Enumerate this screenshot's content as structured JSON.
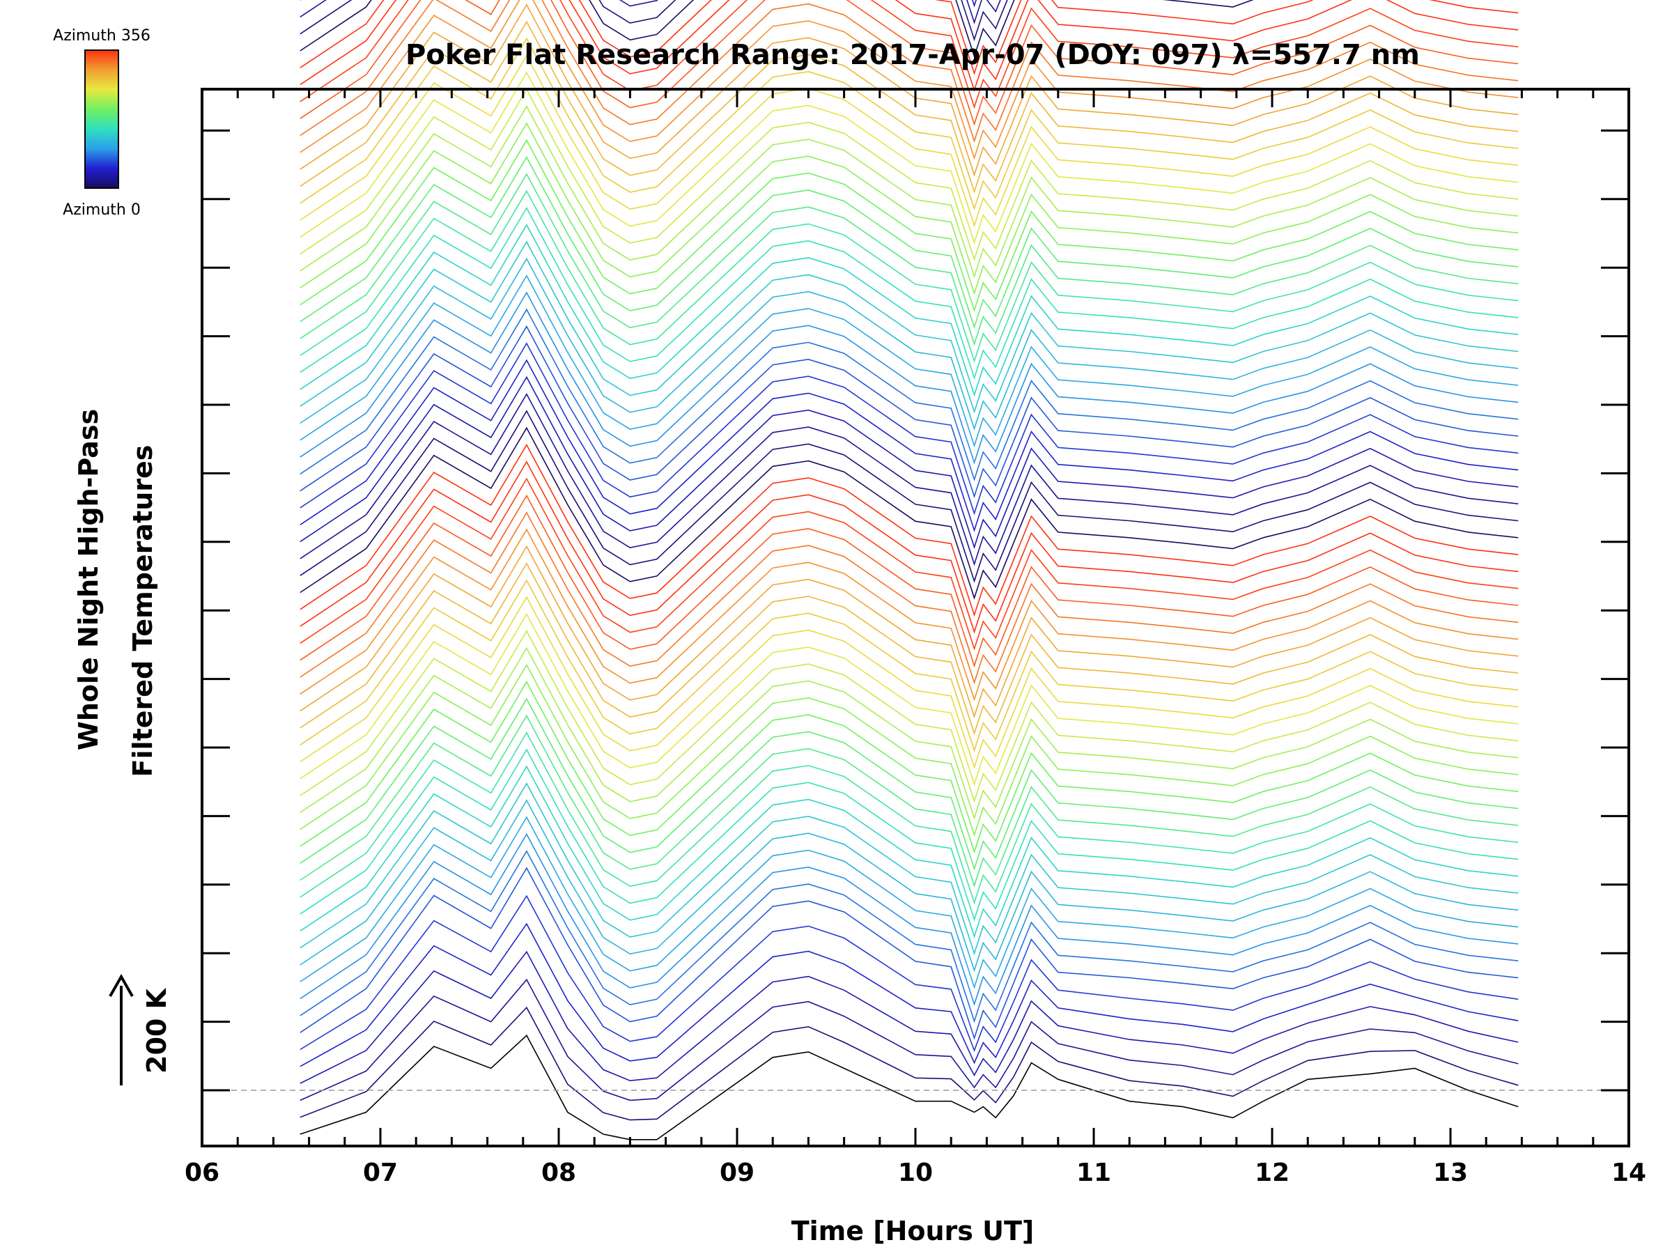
{
  "chart_data": {
    "type": "line",
    "title": "Poker Flat Research Range: 2017-Apr-07 (DOY: 097) λ=557.7 nm",
    "xlabel": "Time [Hours UT]",
    "ylabel_line1": "Whole Night High-Pass",
    "ylabel_line2": "Filtered Temperatures",
    "scale_label": "200 K",
    "xlim": [
      6,
      14
    ],
    "x_ticks": [
      "06",
      "07",
      "08",
      "09",
      "10",
      "11",
      "12",
      "13",
      "14"
    ],
    "y_major_tick_count": 15,
    "baseline_dashed": true,
    "colorbar": {
      "top_label": "Azimuth 356",
      "bottom_label": "Azimuth 0",
      "colormap": "rainbow",
      "colors": [
        "#1a0a60",
        "#2020d0",
        "#2aa0e8",
        "#30e0c0",
        "#70f060",
        "#e8e840",
        "#f0a030",
        "#ff3010"
      ]
    },
    "num_curves": 128,
    "curve_offset_K": 62.5,
    "azimuth_range": [
      0,
      356
    ],
    "x": [
      6.55,
      6.92,
      7.3,
      7.62,
      7.82,
      8.05,
      8.25,
      8.4,
      8.55,
      9.2,
      9.4,
      9.6,
      10.0,
      10.2,
      10.33,
      10.38,
      10.45,
      10.55,
      10.65,
      10.8,
      11.2,
      11.5,
      11.78,
      11.95,
      12.2,
      12.55,
      12.8,
      13.1,
      13.38
    ],
    "template_curve_K": [
      -40,
      0,
      85,
      55,
      110,
      40,
      -15,
      -30,
      -25,
      75,
      80,
      70,
      25,
      20,
      -45,
      -20,
      -35,
      5,
      45,
      15,
      10,
      5,
      0,
      10,
      20,
      45,
      25,
      15,
      10
    ],
    "bottom_curve_K": [
      -40,
      -20,
      40,
      20,
      50,
      -20,
      -40,
      -45,
      -45,
      30,
      35,
      20,
      -10,
      -10,
      -20,
      -15,
      -25,
      -5,
      25,
      10,
      -10,
      -15,
      -25,
      -10,
      10,
      15,
      20,
      0,
      -15
    ]
  }
}
